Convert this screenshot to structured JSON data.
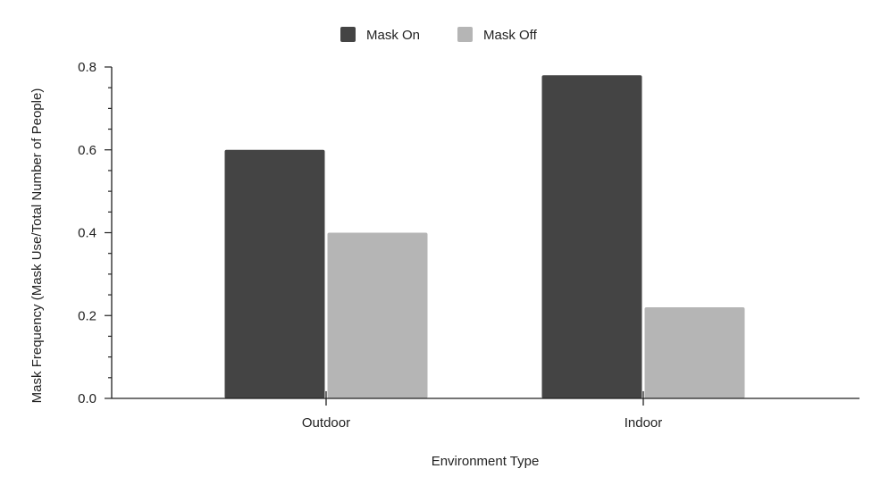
{
  "chart_data": {
    "type": "bar",
    "categories": [
      "Outdoor",
      "Indoor"
    ],
    "series": [
      {
        "name": "Mask On",
        "values": [
          0.6,
          0.78
        ],
        "color": "#444444"
      },
      {
        "name": "Mask Off",
        "values": [
          0.4,
          0.22
        ],
        "color": "#b5b5b5"
      }
    ],
    "xlabel": "Environment Type",
    "ylabel": "Mask Frequency (Mask Use/Total Number of People)",
    "ylim": [
      0,
      0.8
    ],
    "yticks": [
      "0.0",
      "0.2",
      "0.4",
      "0.6",
      "0.8"
    ],
    "grid": false,
    "legend_position": "top-center"
  }
}
